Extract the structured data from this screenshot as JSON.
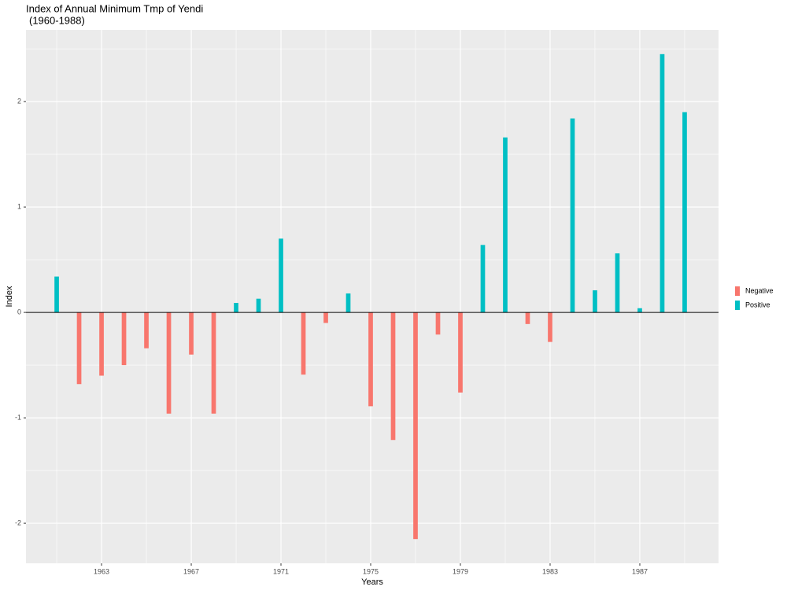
{
  "chart_data": {
    "type": "bar",
    "title": "Index of Annual Minimum Tmp of Yendi",
    "subtitle": "(1960-1988)",
    "xlabel": "Years",
    "ylabel": "Index",
    "x": [
      1961,
      1962,
      1963,
      1964,
      1965,
      1966,
      1967,
      1968,
      1969,
      1970,
      1971,
      1972,
      1973,
      1974,
      1975,
      1976,
      1977,
      1978,
      1979,
      1980,
      1981,
      1982,
      1983,
      1984,
      1985,
      1986,
      1987,
      1988,
      1989
    ],
    "series": [
      {
        "name": "Negative",
        "color": "#F8766D",
        "values": [
          null,
          -0.68,
          -0.6,
          -0.5,
          -0.34,
          -0.96,
          -0.4,
          -0.96,
          null,
          null,
          null,
          -0.59,
          -0.1,
          null,
          -0.89,
          -1.21,
          -2.15,
          -0.21,
          -0.76,
          null,
          null,
          -0.11,
          -0.28,
          null,
          null,
          null,
          null,
          null,
          null
        ]
      },
      {
        "name": "Positive",
        "color": "#00BFC4",
        "values": [
          0.34,
          null,
          null,
          null,
          null,
          null,
          null,
          null,
          0.09,
          0.13,
          0.7,
          null,
          null,
          0.18,
          null,
          null,
          null,
          null,
          null,
          0.64,
          1.66,
          null,
          null,
          1.84,
          0.21,
          0.56,
          0.04,
          2.45,
          1.9
        ]
      }
    ],
    "xlim": [
      1959.63,
      1990.51
    ],
    "xticks": [
      1963,
      1967,
      1971,
      1975,
      1979,
      1983,
      1987
    ],
    "ylim": [
      -2.38,
      2.68
    ],
    "yticks": [
      -2,
      -1,
      0,
      1,
      2
    ],
    "hline": 0,
    "grid": true,
    "legend": "right"
  }
}
